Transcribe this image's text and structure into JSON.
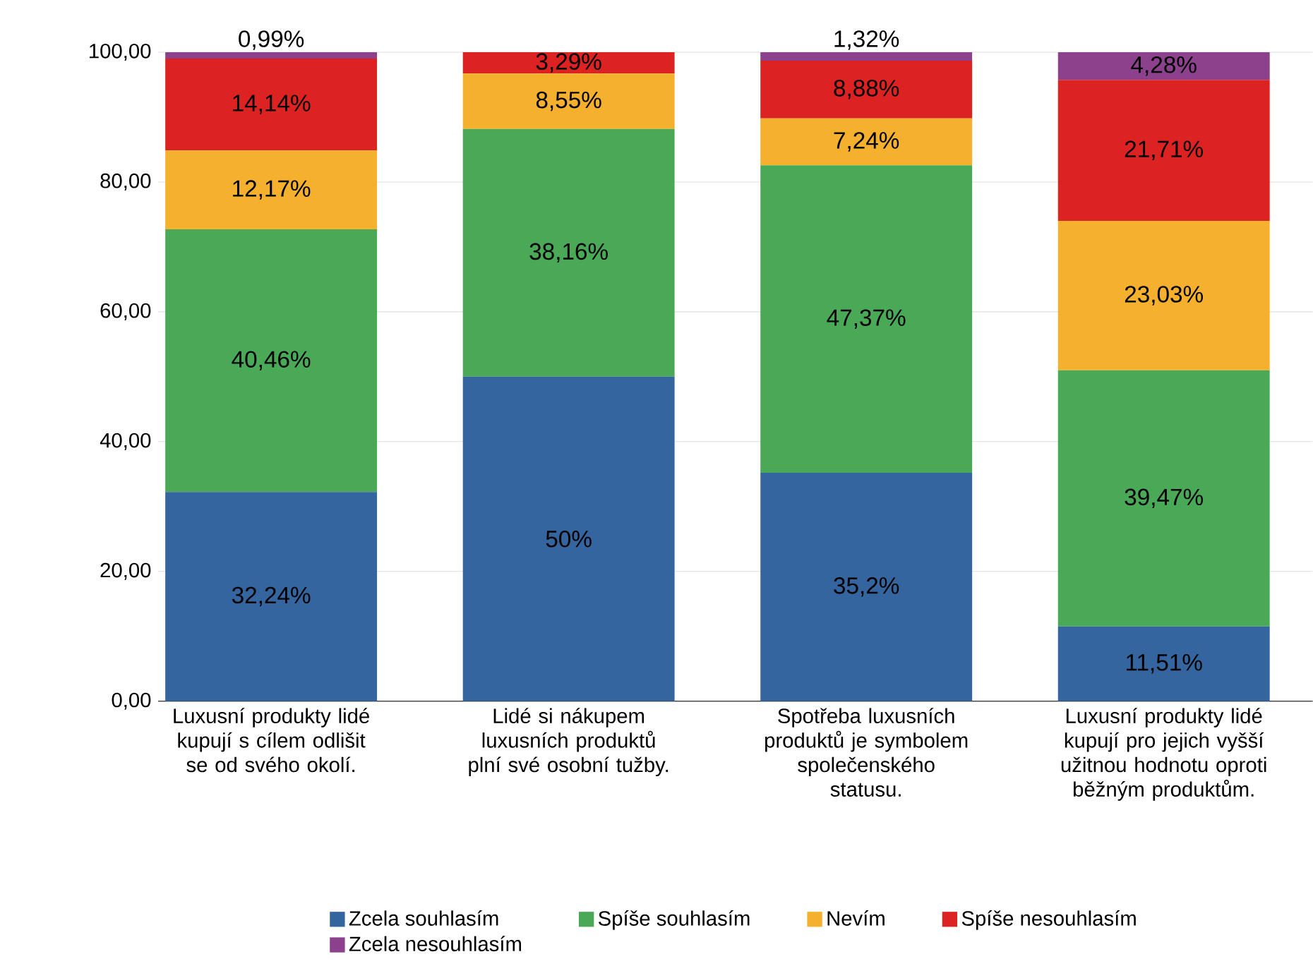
{
  "chart_data": {
    "type": "bar",
    "stacked": true,
    "categories": [
      "Luxusní produkty lidé kupují s cílem odlišit se od svého okolí.",
      "Lidé si nákupem luxusních produktů plní své osobní tužby.",
      "Spotřeba luxusních produktů je symbolem společenského statusu.",
      "Luxusní produkty lidé kupují pro jejich vyšší užitnou hodnotu oproti běžným produktům."
    ],
    "series": [
      {
        "name": "Zcela souhlasím",
        "color": "#34659f",
        "values": [
          32.24,
          50,
          35.2,
          11.51
        ],
        "value_labels": [
          "32,24%",
          "50%",
          "35,2%",
          "11,51%"
        ]
      },
      {
        "name": "Spíše souhlasím",
        "color": "#4aa957",
        "values": [
          40.46,
          38.16,
          47.37,
          39.47
        ],
        "value_labels": [
          "40,46%",
          "38,16%",
          "47,37%",
          "39,47%"
        ]
      },
      {
        "name": "Nevím",
        "color": "#f5b02d",
        "values": [
          12.17,
          8.55,
          7.24,
          23.03
        ],
        "value_labels": [
          "12,17%",
          "8,55%",
          "7,24%",
          "23,03%"
        ]
      },
      {
        "name": "Spíše nesouhlasím",
        "color": "#dc2322",
        "values": [
          14.14,
          3.29,
          8.88,
          21.71
        ],
        "value_labels": [
          "14,14%",
          "3,29%",
          "8,88%",
          "21,71%"
        ]
      },
      {
        "name": "Zcela nesouhlasím",
        "color": "#8c418c",
        "values": [
          0.99,
          null,
          1.32,
          4.28
        ],
        "value_labels": [
          "0,99%",
          null,
          "1,32%",
          "4,28%"
        ]
      }
    ],
    "ylim": [
      0,
      100
    ],
    "yticks": [
      {
        "value": 0,
        "label": "0,00"
      },
      {
        "value": 20,
        "label": "20,00"
      },
      {
        "value": 40,
        "label": "40,00"
      },
      {
        "value": 60,
        "label": "60,00"
      },
      {
        "value": 80,
        "label": "80,00"
      },
      {
        "value": 100,
        "label": "100,00"
      }
    ],
    "grid": "y",
    "legend": "bottom"
  }
}
